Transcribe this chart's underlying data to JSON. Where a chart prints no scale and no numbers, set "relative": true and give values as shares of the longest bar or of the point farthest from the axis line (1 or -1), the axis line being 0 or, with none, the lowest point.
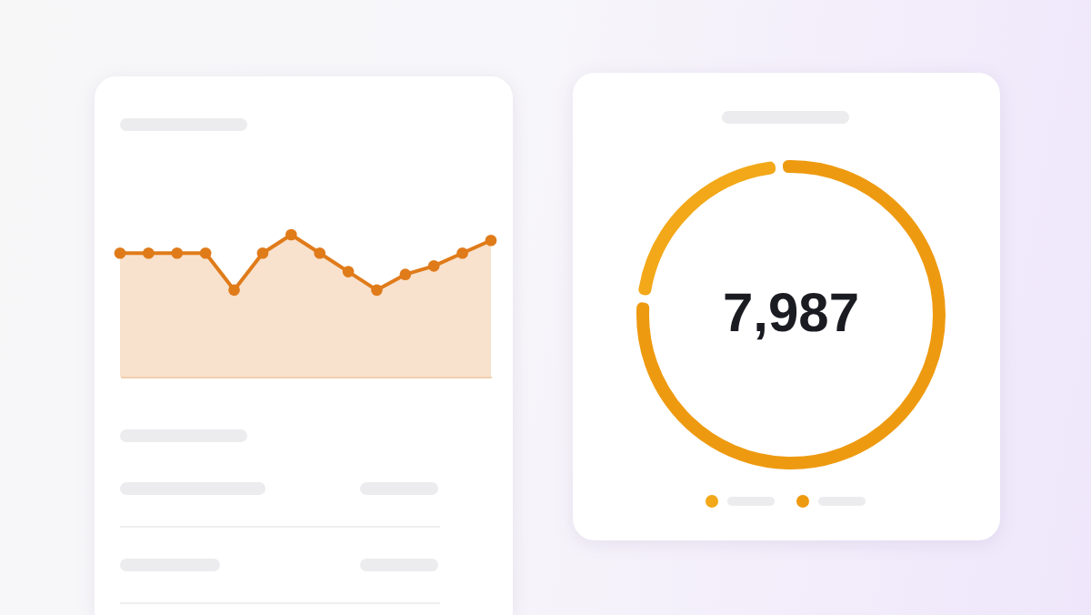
{
  "chart_data": [
    {
      "type": "area",
      "categories": [
        null,
        null,
        null,
        null,
        null,
        null,
        null,
        null,
        null,
        null,
        null,
        null,
        null,
        null
      ],
      "relative": true,
      "marker": "circle",
      "series": [
        {
          "color": "#e07b1a",
          "values": [
            0.87,
            0.87,
            0.87,
            0.87,
            0.61,
            0.87,
            1,
            0.87,
            0.74,
            0.61,
            0.72,
            0.78,
            0.87,
            0.96
          ]
        }
      ]
    },
    {
      "type": "donut",
      "categories": [
        null,
        null
      ],
      "values": [
        78,
        22
      ],
      "colors": [
        "#ee9a10",
        "#f2a818"
      ],
      "annotations": [
        "7,987"
      ]
    }
  ]
}
